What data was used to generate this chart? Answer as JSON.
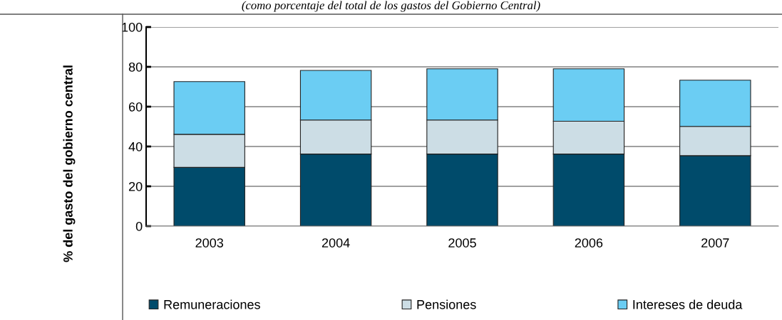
{
  "chart_data": {
    "type": "bar",
    "stacked": true,
    "subtitle": "(como porcentaje del total de los gastos del Gobierno Central)",
    "ylabel": "% del gasto del gobierno central",
    "categories": [
      "2003",
      "2004",
      "2005",
      "2006",
      "2007"
    ],
    "series": [
      {
        "name": "Remuneraciones",
        "color": "#004b6b",
        "values": [
          29.5,
          36.2,
          36.2,
          36.2,
          35.4
        ]
      },
      {
        "name": "Pensiones",
        "color": "#ccdde5",
        "values": [
          16.6,
          17.1,
          17.1,
          16.5,
          14.7
        ]
      },
      {
        "name": "Intereses de deuda",
        "color": "#6bcdf3",
        "values": [
          26.5,
          24.9,
          25.7,
          26.3,
          23.2
        ]
      }
    ],
    "ylim": [
      0,
      100
    ],
    "yticks": [
      0,
      20,
      40,
      60,
      80,
      100
    ],
    "grid": "y",
    "legend": "bottom"
  }
}
